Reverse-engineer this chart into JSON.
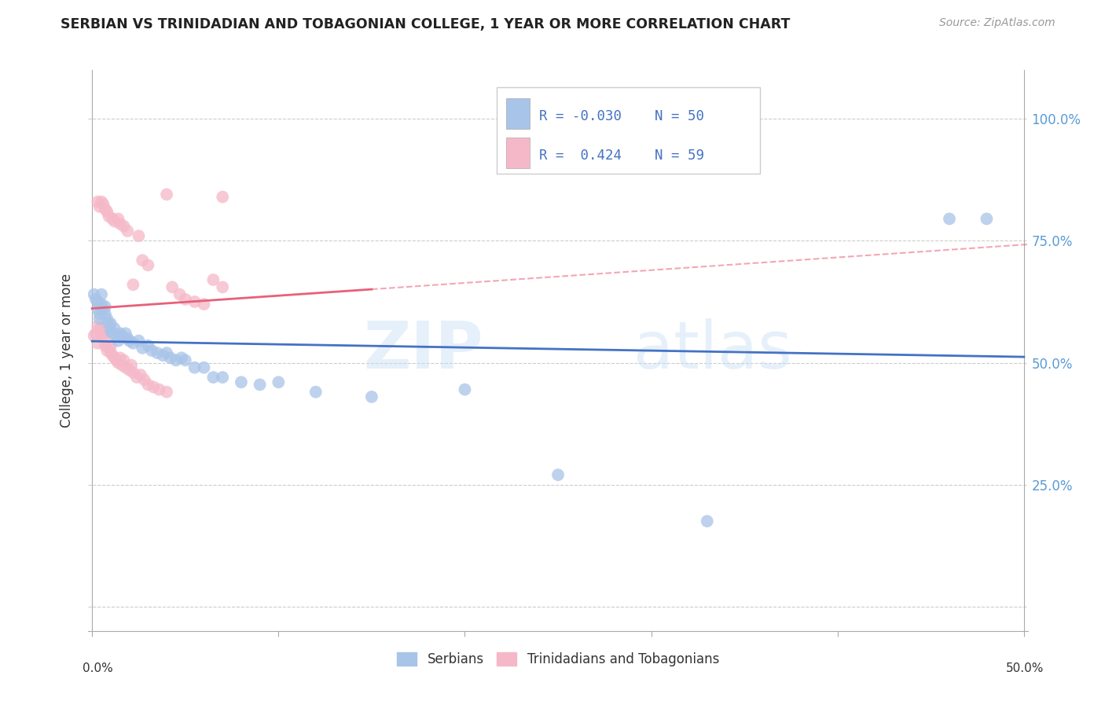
{
  "title": "SERBIAN VS TRINIDADIAN AND TOBAGONIAN COLLEGE, 1 YEAR OR MORE CORRELATION CHART",
  "source": "Source: ZipAtlas.com",
  "ylabel": "College, 1 year or more",
  "legend_label1": "Serbians",
  "legend_label2": "Trinidadians and Tobagonians",
  "R1": "-0.030",
  "N1": "50",
  "R2": "0.424",
  "N2": "59",
  "color_serbian": "#a8c4e8",
  "color_trinidadian": "#f5b8c8",
  "color_serbian_line": "#4472c4",
  "color_trinidadian_line": "#e8607a",
  "watermark_zip": "ZIP",
  "watermark_atlas": "atlas",
  "serbian_x": [
    0.001,
    0.002,
    0.003,
    0.003,
    0.004,
    0.004,
    0.005,
    0.005,
    0.006,
    0.007,
    0.007,
    0.008,
    0.009,
    0.01,
    0.01,
    0.011,
    0.012,
    0.013,
    0.014,
    0.015,
    0.016,
    0.018,
    0.019,
    0.02,
    0.022,
    0.025,
    0.027,
    0.03,
    0.032,
    0.035,
    0.038,
    0.04,
    0.042,
    0.045,
    0.048,
    0.05,
    0.055,
    0.06,
    0.065,
    0.07,
    0.08,
    0.09,
    0.1,
    0.12,
    0.15,
    0.2,
    0.25,
    0.33,
    0.46,
    0.48
  ],
  "serbian_y": [
    0.64,
    0.63,
    0.625,
    0.61,
    0.6,
    0.59,
    0.64,
    0.62,
    0.61,
    0.6,
    0.615,
    0.59,
    0.58,
    0.565,
    0.58,
    0.56,
    0.57,
    0.555,
    0.545,
    0.56,
    0.555,
    0.56,
    0.55,
    0.545,
    0.54,
    0.545,
    0.53,
    0.535,
    0.525,
    0.52,
    0.515,
    0.52,
    0.51,
    0.505,
    0.51,
    0.505,
    0.49,
    0.49,
    0.47,
    0.47,
    0.46,
    0.455,
    0.46,
    0.44,
    0.43,
    0.445,
    0.27,
    0.175,
    0.795,
    0.795
  ],
  "trinidadian_x": [
    0.001,
    0.002,
    0.003,
    0.003,
    0.004,
    0.005,
    0.005,
    0.006,
    0.006,
    0.007,
    0.007,
    0.008,
    0.009,
    0.01,
    0.01,
    0.011,
    0.012,
    0.013,
    0.014,
    0.015,
    0.016,
    0.017,
    0.018,
    0.02,
    0.021,
    0.022,
    0.024,
    0.026,
    0.028,
    0.03,
    0.033,
    0.036,
    0.04,
    0.043,
    0.047,
    0.05,
    0.055,
    0.06,
    0.065,
    0.07,
    0.003,
    0.004,
    0.005,
    0.006,
    0.007,
    0.008,
    0.009,
    0.011,
    0.012,
    0.014,
    0.015,
    0.017,
    0.019,
    0.022,
    0.025,
    0.027,
    0.03,
    0.04,
    0.07
  ],
  "trinidadian_y": [
    0.555,
    0.56,
    0.575,
    0.54,
    0.57,
    0.56,
    0.57,
    0.565,
    0.555,
    0.545,
    0.535,
    0.525,
    0.53,
    0.52,
    0.535,
    0.515,
    0.51,
    0.505,
    0.5,
    0.51,
    0.495,
    0.505,
    0.49,
    0.485,
    0.495,
    0.48,
    0.47,
    0.475,
    0.465,
    0.455,
    0.45,
    0.445,
    0.44,
    0.655,
    0.64,
    0.63,
    0.625,
    0.62,
    0.67,
    0.655,
    0.83,
    0.82,
    0.83,
    0.825,
    0.815,
    0.81,
    0.8,
    0.795,
    0.79,
    0.795,
    0.785,
    0.78,
    0.77,
    0.66,
    0.76,
    0.71,
    0.7,
    0.845,
    0.84
  ],
  "xlim": [
    0.0,
    0.5
  ],
  "ylim": [
    0.0,
    1.08
  ],
  "ytick_vals": [
    0.0,
    0.25,
    0.5,
    0.75,
    1.0
  ],
  "ytick_labels": [
    "",
    "25.0%",
    "50.0%",
    "75.0%",
    "100.0%"
  ]
}
